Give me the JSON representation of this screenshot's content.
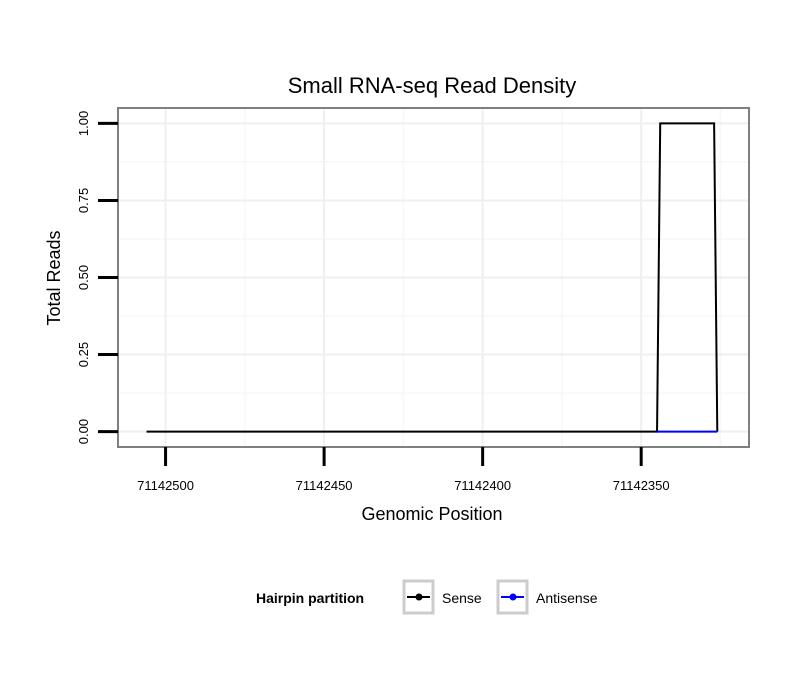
{
  "chart_data": {
    "type": "line",
    "title": "Small RNA-seq Read Density",
    "xlabel": "Genomic Position",
    "ylabel": "Total Reads",
    "x_reversed": true,
    "xlim": [
      71142515,
      71142316
    ],
    "ylim": [
      -0.05,
      1.05
    ],
    "x_ticks": [
      71142500,
      71142450,
      71142400,
      71142350
    ],
    "x_tick_labels": [
      "71142500",
      "71142450",
      "71142400",
      "71142350"
    ],
    "y_ticks": [
      0,
      0.25,
      0.5,
      0.75,
      1
    ],
    "y_tick_labels": [
      "0.00",
      "0.25",
      "0.50",
      "0.75",
      "1.00"
    ],
    "grid": true,
    "legend": {
      "title": "Hairpin partition",
      "position": "bottom"
    },
    "series": [
      {
        "name": "Sense",
        "color": "#000000",
        "x": [
          71142506,
          71142345,
          71142344,
          71142327,
          71142326
        ],
        "y": [
          0,
          0,
          1,
          1,
          0
        ]
      },
      {
        "name": "Antisense",
        "color": "#0000ff",
        "x": [
          71142345,
          71142326
        ],
        "y": [
          0,
          0
        ]
      }
    ]
  }
}
